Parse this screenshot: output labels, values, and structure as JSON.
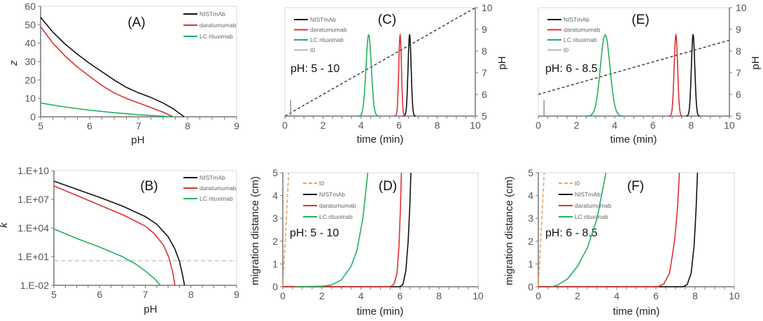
{
  "chart_data": [
    {
      "panel": "(A)",
      "type": "line",
      "xlabel": "pH",
      "ylabel": "z",
      "xlim": [
        5,
        9
      ],
      "ylim": [
        0,
        60
      ],
      "xticks": [
        5,
        6,
        7,
        8,
        9
      ],
      "yticks": [
        0,
        10,
        20,
        30,
        40,
        50,
        60
      ],
      "legend_placement": "top-right",
      "series": [
        {
          "name": "NISTmAb",
          "color": "#111111",
          "x": [
            5,
            5.25,
            5.5,
            5.75,
            6,
            6.25,
            6.5,
            6.75,
            7,
            7.25,
            7.5,
            7.7,
            7.93
          ],
          "y": [
            54,
            46,
            39.5,
            34,
            29,
            24.5,
            20,
            16,
            13,
            10.5,
            7.5,
            4.5,
            0
          ]
        },
        {
          "name": "daratumumab",
          "color": "#e03030",
          "x": [
            5,
            5.25,
            5.5,
            5.75,
            6,
            6.25,
            6.5,
            6.75,
            7,
            7.25,
            7.5,
            7.7
          ],
          "y": [
            49,
            40,
            33,
            27,
            22,
            17,
            13,
            10,
            7.5,
            5,
            2.5,
            0
          ]
        },
        {
          "name": "LC rituximab",
          "color": "#22b060",
          "x": [
            5,
            5.5,
            6,
            6.5,
            7,
            7.5,
            7.7
          ],
          "y": [
            7.5,
            5.3,
            3.6,
            2.2,
            1.1,
            0.3,
            0
          ]
        }
      ]
    },
    {
      "panel": "(B)",
      "type": "line",
      "xlabel": "pH",
      "ylabel": "k",
      "yscale": "log",
      "xlim": [
        5,
        9
      ],
      "ylim": [
        0.01,
        10000000000.0
      ],
      "xticks": [
        5,
        6,
        7,
        8,
        9
      ],
      "yticks": [
        0.01,
        10,
        10000,
        10000000.0,
        10000000000.0
      ],
      "ytick_labels": [
        "1.E-02",
        "1.E+01",
        "1.E+04",
        "1.E+07",
        "1.E+10"
      ],
      "reference_line": {
        "y": 3.7,
        "style": "dashed",
        "color": "#aaaaaa"
      },
      "legend_placement": "top-right",
      "series": [
        {
          "name": "NISTmAb",
          "color": "#111111",
          "x": [
            5,
            5.5,
            6,
            6.5,
            7,
            7.25,
            7.5,
            7.65,
            7.75,
            7.82,
            7.86
          ],
          "y_log10": [
            8.9,
            8.05,
            7.2,
            6.3,
            5.2,
            4.4,
            3.1,
            1.8,
            0.5,
            -1,
            -2
          ]
        },
        {
          "name": "daratumumab",
          "color": "#e03030",
          "x": [
            5,
            5.5,
            6,
            6.5,
            7,
            7.2,
            7.4,
            7.52,
            7.6,
            7.65
          ],
          "y_log10": [
            8.4,
            7.4,
            6.4,
            5.4,
            4.2,
            3.4,
            2.2,
            0.9,
            -0.6,
            -2
          ]
        },
        {
          "name": "LC rituximab",
          "color": "#22b060",
          "x": [
            5,
            5.5,
            6,
            6.5,
            6.8,
            7,
            7.2,
            7.33
          ],
          "y_log10": [
            3.9,
            2.9,
            2,
            1,
            0.2,
            -0.5,
            -1.3,
            -2
          ]
        }
      ]
    },
    {
      "panel": "(C)",
      "type": "line",
      "xlabel": "time (min)",
      "y2label": "pH",
      "annotation": "pH: 5 - 10",
      "xlim": [
        0,
        10
      ],
      "y2lim": [
        5,
        10
      ],
      "xticks": [
        0,
        2,
        4,
        6,
        8,
        10
      ],
      "y2ticks": [
        5,
        6,
        7,
        8,
        9,
        10
      ],
      "ph_gradient": {
        "t": [
          0,
          10
        ],
        "pH": [
          5,
          10
        ],
        "style": "dashed"
      },
      "legend_placement": "top-left",
      "peaks": [
        {
          "name": "NISTmAb",
          "color": "#111111",
          "peak_time": 6.55,
          "sigma": 0.08
        },
        {
          "name": "daratumumab",
          "color": "#e03030",
          "peak_time": 6.05,
          "sigma": 0.07
        },
        {
          "name": "LC rituximab",
          "color": "#22b060",
          "peak_time": 4.4,
          "sigma": 0.14
        },
        {
          "name": "t0",
          "color": "#999999",
          "peak_time": 0.3
        }
      ]
    },
    {
      "panel": "(D)",
      "type": "line",
      "xlabel": "time (min)",
      "ylabel": "migration distance (cm)",
      "annotation": "pH: 5 - 10",
      "xlim": [
        0,
        10
      ],
      "ylim": [
        0,
        5
      ],
      "xticks": [
        0,
        2,
        4,
        6,
        8,
        10
      ],
      "yticks": [
        0,
        1,
        2,
        3,
        4,
        5
      ],
      "legend_placement": "top-left",
      "series": [
        {
          "name": "t0",
          "color": "#f0a060",
          "style": "dashed",
          "x": [
            0,
            0.3
          ],
          "y": [
            0,
            5
          ]
        },
        {
          "name": "NISTmAb",
          "color": "#111111",
          "x": [
            0,
            6.0,
            6.15,
            6.3,
            6.42,
            6.5,
            6.56
          ],
          "y": [
            0,
            0,
            0.1,
            0.7,
            2,
            3.5,
            5
          ]
        },
        {
          "name": "daratumumab",
          "color": "#e03030",
          "x": [
            0,
            5.5,
            5.7,
            5.85,
            5.95,
            6.02,
            6.07
          ],
          "y": [
            0,
            0,
            0.12,
            0.6,
            1.8,
            3.4,
            5
          ]
        },
        {
          "name": "LC rituximab",
          "color": "#22b060",
          "x": [
            0.7,
            2,
            2.5,
            3,
            3.5,
            3.8,
            4.1,
            4.35
          ],
          "y": [
            0,
            0.02,
            0.08,
            0.3,
            0.9,
            1.6,
            3,
            5
          ]
        }
      ]
    },
    {
      "panel": "(E)",
      "type": "line",
      "xlabel": "time (min)",
      "y2label": "pH",
      "annotation": "pH: 6 - 8.5",
      "xlim": [
        0,
        10
      ],
      "y2lim": [
        5,
        10
      ],
      "xticks": [
        0,
        2,
        4,
        6,
        8,
        10
      ],
      "y2ticks": [
        5,
        6,
        7,
        8,
        9,
        10
      ],
      "ph_gradient": {
        "t": [
          0,
          10
        ],
        "pH": [
          6,
          8.5
        ],
        "style": "dashed"
      },
      "legend_placement": "top-left",
      "peaks": [
        {
          "name": "NISTmAb",
          "color": "#111111",
          "peak_time": 8.1,
          "sigma": 0.09
        },
        {
          "name": "daratumumab",
          "color": "#e03030",
          "peak_time": 7.2,
          "sigma": 0.09
        },
        {
          "name": "LC rituximab",
          "color": "#22b060",
          "peak_time": 3.5,
          "sigma": 0.25
        },
        {
          "name": "t0",
          "color": "#999999",
          "peak_time": 0.3
        }
      ]
    },
    {
      "panel": "(F)",
      "type": "line",
      "xlabel": "time (min)",
      "ylabel": "migration distance (cm)",
      "annotation": "pH: 6 - 8.5",
      "xlim": [
        0,
        10
      ],
      "ylim": [
        0,
        5
      ],
      "xticks": [
        0,
        2,
        4,
        6,
        8,
        10
      ],
      "yticks": [
        0,
        1,
        2,
        3,
        4,
        5
      ],
      "legend_placement": "top-left",
      "series": [
        {
          "name": "t0",
          "color": "#f0a060",
          "style": "dashed",
          "x": [
            0,
            0.3
          ],
          "y": [
            0,
            5
          ]
        },
        {
          "name": "NISTmAb",
          "color": "#111111",
          "x": [
            0,
            7.4,
            7.6,
            7.8,
            7.95,
            8.05,
            8.12
          ],
          "y": [
            0,
            0,
            0.1,
            0.6,
            1.8,
            3.4,
            5
          ]
        },
        {
          "name": "daratumumab",
          "color": "#e03030",
          "x": [
            0,
            6.1,
            6.4,
            6.7,
            6.95,
            7.1,
            7.2
          ],
          "y": [
            0,
            0,
            0.12,
            0.6,
            2,
            3.4,
            5
          ]
        },
        {
          "name": "LC rituximab",
          "color": "#22b060",
          "x": [
            0.7,
            1,
            1.5,
            2,
            2.5,
            3,
            3.45
          ],
          "y": [
            0,
            0.08,
            0.35,
            0.9,
            1.7,
            3,
            5
          ]
        }
      ]
    }
  ]
}
